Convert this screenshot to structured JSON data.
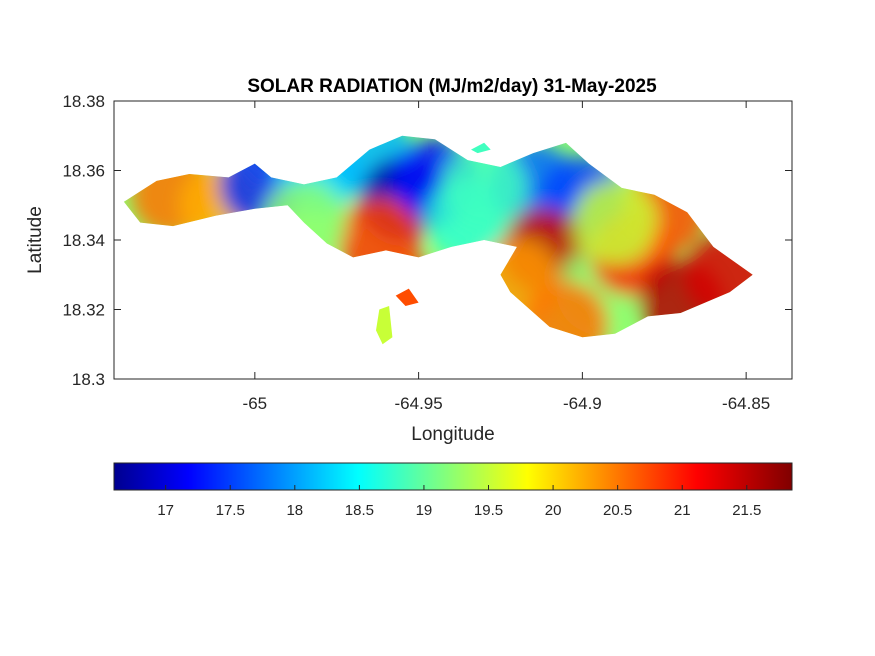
{
  "chart_data": {
    "type": "heatmap",
    "title": "SOLAR RADIATION (MJ/m2/day) 31-May-2025",
    "xlabel": "Longitude",
    "ylabel": "Latitude",
    "xlim": [
      -65.043,
      -64.836
    ],
    "ylim": [
      18.3,
      18.38
    ],
    "x_ticks": [
      -65,
      -64.95,
      -64.9,
      -64.85
    ],
    "x_tick_labels": [
      "-65",
      "-64.95",
      "-64.9",
      "-64.85"
    ],
    "y_ticks": [
      18.3,
      18.32,
      18.34,
      18.36,
      18.38
    ],
    "y_tick_labels": [
      "18.3",
      "18.32",
      "18.34",
      "18.36",
      "18.38"
    ],
    "colormap": "jet",
    "clim": [
      16.6,
      21.85
    ],
    "colorbar_ticks": [
      17,
      17.5,
      18,
      18.5,
      19,
      19.5,
      20,
      20.5,
      21,
      21.5
    ],
    "colorbar_tick_labels": [
      "17",
      "17.5",
      "18",
      "18.5",
      "19",
      "19.5",
      "20",
      "20.5",
      "21",
      "21.5"
    ],
    "colorbar_location": "southoutside",
    "region_outline": [
      [
        -65.04,
        18.351
      ],
      [
        -65.03,
        18.357
      ],
      [
        -65.02,
        18.359
      ],
      [
        -65.008,
        18.358
      ],
      [
        -65.0,
        18.362
      ],
      [
        -64.995,
        18.358
      ],
      [
        -64.985,
        18.356
      ],
      [
        -64.975,
        18.358
      ],
      [
        -64.965,
        18.366
      ],
      [
        -64.955,
        18.37
      ],
      [
        -64.945,
        18.369
      ],
      [
        -64.935,
        18.363
      ],
      [
        -64.925,
        18.361
      ],
      [
        -64.915,
        18.365
      ],
      [
        -64.905,
        18.368
      ],
      [
        -64.898,
        18.362
      ],
      [
        -64.888,
        18.355
      ],
      [
        -64.878,
        18.353
      ],
      [
        -64.868,
        18.348
      ],
      [
        -64.86,
        18.338
      ],
      [
        -64.848,
        18.33
      ],
      [
        -64.855,
        18.325
      ],
      [
        -64.87,
        18.319
      ],
      [
        -64.88,
        18.318
      ],
      [
        -64.89,
        18.313
      ],
      [
        -64.9,
        18.312
      ],
      [
        -64.91,
        18.315
      ],
      [
        -64.922,
        18.325
      ],
      [
        -64.925,
        18.33
      ],
      [
        -64.92,
        18.338
      ],
      [
        -64.93,
        18.34
      ],
      [
        -64.94,
        18.338
      ],
      [
        -64.95,
        18.335
      ],
      [
        -64.96,
        18.337
      ],
      [
        -64.97,
        18.335
      ],
      [
        -64.978,
        18.339
      ],
      [
        -64.985,
        18.345
      ],
      [
        -64.99,
        18.35
      ],
      [
        -65.0,
        18.349
      ],
      [
        -65.012,
        18.347
      ],
      [
        -65.025,
        18.344
      ],
      [
        -65.035,
        18.345
      ],
      [
        -65.04,
        18.351
      ]
    ],
    "islets": [
      [
        [
          -64.934,
          18.366
        ],
        [
          -64.93,
          18.368
        ],
        [
          -64.928,
          18.366
        ],
        [
          -64.932,
          18.365
        ]
      ],
      [
        [
          -64.957,
          18.324
        ],
        [
          -64.953,
          18.326
        ],
        [
          -64.95,
          18.322
        ],
        [
          -64.954,
          18.321
        ]
      ],
      [
        [
          -64.962,
          18.32
        ],
        [
          -64.959,
          18.321
        ],
        [
          -64.958,
          18.312
        ],
        [
          -64.961,
          18.31
        ],
        [
          -64.963,
          18.314
        ]
      ]
    ],
    "field_points": [
      {
        "lon": -65.025,
        "lat": 18.353,
        "value": 20.6
      },
      {
        "lon": -65.01,
        "lat": 18.35,
        "value": 20.3
      },
      {
        "lon": -64.998,
        "lat": 18.356,
        "value": 17.5
      },
      {
        "lon": -64.98,
        "lat": 18.36,
        "value": 18.4
      },
      {
        "lon": -64.965,
        "lat": 18.365,
        "value": 18.2
      },
      {
        "lon": -64.955,
        "lat": 18.352,
        "value": 16.8
      },
      {
        "lon": -64.945,
        "lat": 18.357,
        "value": 17.3
      },
      {
        "lon": -64.935,
        "lat": 18.346,
        "value": 18.8
      },
      {
        "lon": -64.962,
        "lat": 18.34,
        "value": 20.9
      },
      {
        "lon": -64.985,
        "lat": 18.345,
        "value": 19.3
      },
      {
        "lon": -64.915,
        "lat": 18.356,
        "value": 17.8
      },
      {
        "lon": -64.9,
        "lat": 18.352,
        "value": 17.6
      },
      {
        "lon": -64.912,
        "lat": 18.337,
        "value": 21.5
      },
      {
        "lon": -64.92,
        "lat": 18.328,
        "value": 20.4
      },
      {
        "lon": -64.895,
        "lat": 18.325,
        "value": 19.3
      },
      {
        "lon": -64.885,
        "lat": 18.336,
        "value": 21.0
      },
      {
        "lon": -64.875,
        "lat": 18.348,
        "value": 20.8
      },
      {
        "lon": -64.87,
        "lat": 18.322,
        "value": 21.6
      },
      {
        "lon": -64.856,
        "lat": 18.33,
        "value": 21.4
      },
      {
        "lon": -64.905,
        "lat": 18.316,
        "value": 20.6
      },
      {
        "lon": -64.93,
        "lat": 18.355,
        "value": 18.9
      },
      {
        "lon": -64.89,
        "lat": 18.345,
        "value": 19.6
      },
      {
        "lon": -64.954,
        "lat": 18.323,
        "value": 20.8
      },
      {
        "lon": -64.96,
        "lat": 18.316,
        "value": 19.6
      }
    ]
  }
}
